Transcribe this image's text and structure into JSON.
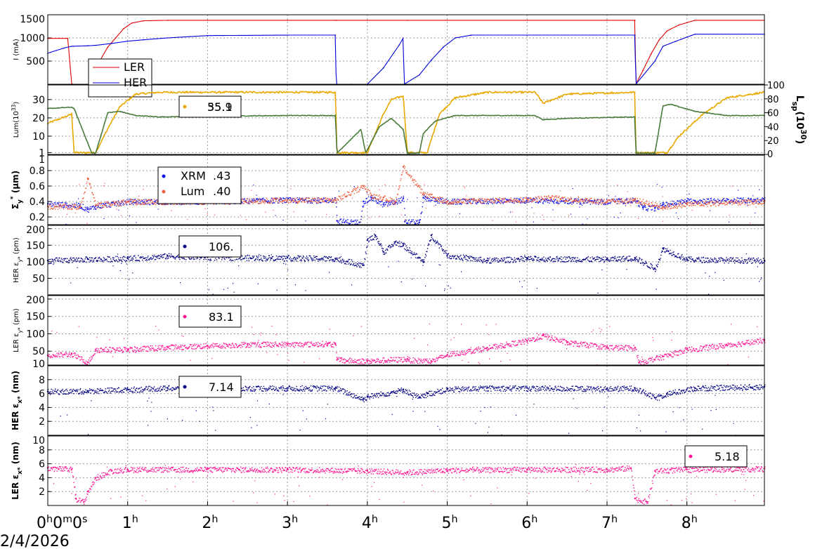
{
  "time_axis": {
    "ticks": [
      {
        "hours": 0,
        "label": "0",
        "sup": "h",
        "extra": "0",
        "extra_sup": "m",
        "extra2": "0",
        "extra2_sup": "s"
      },
      {
        "hours": 1,
        "label": "1",
        "sup": "h"
      },
      {
        "hours": 2,
        "label": "2",
        "sup": "h"
      },
      {
        "hours": 3,
        "label": "3",
        "sup": "h"
      },
      {
        "hours": 4,
        "label": "4",
        "sup": "h"
      },
      {
        "hours": 5,
        "label": "5",
        "sup": "h"
      },
      {
        "hours": 6,
        "label": "6",
        "sup": "h"
      },
      {
        "hours": 7,
        "label": "7",
        "sup": "h"
      },
      {
        "hours": 8,
        "label": "8",
        "sup": "h"
      }
    ],
    "date": "2/4/2026",
    "range_hours": [
      0,
      8.97
    ]
  },
  "chart_data": [
    {
      "type": "line",
      "ylabel": "I (mA)",
      "ylim": [
        0,
        1500
      ],
      "yticks": [
        500,
        1000,
        1500
      ],
      "grid": true,
      "legend_placement": "top-left",
      "series": [
        {
          "name": "LER",
          "color": "#e00000",
          "x": [
            0,
            0.25,
            0.3,
            0.5,
            0.55,
            0.6,
            0.65,
            0.75,
            0.85,
            0.95,
            1.05,
            1.2,
            1.5,
            2,
            3,
            3.6,
            3.62,
            4,
            4.5,
            5,
            6,
            7,
            7.35,
            7.36,
            7.45,
            7.55,
            7.65,
            7.75,
            7.9,
            8.1,
            8.97
          ],
          "y": [
            990,
            990,
            0,
            0,
            0,
            200,
            500,
            800,
            1000,
            1200,
            1320,
            1370,
            1380,
            1380,
            1380,
            1380,
            1380,
            1380,
            1380,
            1380,
            1380,
            1380,
            1380,
            0,
            300,
            650,
            950,
            1150,
            1280,
            1380,
            1380
          ]
        },
        {
          "name": "HER",
          "color": "#0000dd",
          "x": [
            0,
            0.2,
            0.3,
            0.32,
            0.5,
            0.6,
            0.8,
            1.0,
            1.2,
            1.5,
            2,
            3,
            3.6,
            3.61,
            3.8,
            4.0,
            4.2,
            4.4,
            4.45,
            4.46,
            4.65,
            4.8,
            4.95,
            5.1,
            5.3,
            6,
            7,
            7.35,
            7.36,
            7.6,
            7.7,
            7.85,
            8.1,
            8.97
          ],
          "y": [
            670,
            780,
            820,
            820,
            830,
            840,
            880,
            930,
            960,
            1000,
            1050,
            1060,
            1060,
            0,
            0,
            0,
            350,
            850,
            1000,
            0,
            200,
            520,
            800,
            1000,
            1060,
            1060,
            1060,
            1060,
            0,
            500,
            820,
            920,
            1080,
            1080
          ]
        }
      ]
    },
    {
      "type": "line",
      "ylabel": "Lum(10",
      "ylabel_sup": "33",
      "ylabel_tail": ")",
      "ylim": [
        0,
        38
      ],
      "yticks": [
        1,
        10,
        20,
        30
      ],
      "y2label": "L",
      "y2label_sub": "sp",
      "y2label_mid": "(10",
      "y2label_sup": "30",
      "y2label_tail": ")",
      "y2lim": [
        0,
        100
      ],
      "y2ticks": [
        0,
        20,
        40,
        60,
        80,
        100
      ],
      "grid": true,
      "legend_value": "55.1",
      "legend_value_2": "35.9",
      "series": [
        {
          "name": "",
          "axis": "left",
          "color": "#e8a800",
          "x": [
            0,
            0.3,
            0.33,
            0.55,
            0.6,
            0.75,
            0.9,
            1.1,
            1.4,
            2,
            3,
            3.6,
            3.62,
            3.95,
            4.0,
            4.2,
            4.3,
            4.45,
            4.5,
            4.72,
            4.75,
            4.9,
            5.1,
            5.5,
            6.1,
            6.2,
            6.5,
            7.35,
            7.36,
            7.75,
            7.9,
            8.2,
            8.5,
            8.97
          ],
          "y": [
            17,
            22,
            1,
            1,
            1,
            14,
            26,
            33,
            34,
            34,
            34,
            34,
            1,
            1,
            1,
            22,
            30,
            32,
            1,
            1,
            1,
            22,
            31,
            34,
            34,
            28,
            33,
            34,
            1,
            1,
            10,
            22,
            31,
            34
          ]
        },
        {
          "name": "",
          "axis": "right",
          "color": "#4b7a3a",
          "x": [
            0,
            0.3,
            0.33,
            0.55,
            0.6,
            0.75,
            0.9,
            1.1,
            1.4,
            2,
            3,
            3.6,
            3.62,
            3.92,
            3.98,
            4.15,
            4.3,
            4.45,
            4.5,
            4.65,
            4.7,
            4.85,
            5.1,
            5.5,
            6.1,
            6.2,
            6.5,
            7.35,
            7.36,
            7.6,
            7.7,
            7.8,
            8.1,
            8.5,
            8.97
          ],
          "y": [
            66,
            68,
            66,
            2,
            2,
            60,
            62,
            56,
            54,
            55,
            56,
            56,
            2,
            36,
            2,
            40,
            52,
            36,
            2,
            2,
            30,
            48,
            56,
            56,
            56,
            50,
            52,
            54,
            2,
            2,
            70,
            72,
            62,
            56,
            56
          ]
        }
      ]
    },
    {
      "type": "scatter",
      "ylabel": "Σ",
      "ylabel_sub": "y",
      "ylabel_sup": "*",
      "ylabel_tail": " (µm)",
      "ylim": [
        0.1,
        1.0
      ],
      "yticks": [
        0.2,
        0.4,
        0.6,
        0.8,
        1.0
      ],
      "grid": true,
      "series": [
        {
          "name": "XRM",
          "value": ".43",
          "color": "#1010ee",
          "x": [
            0,
            0.4,
            0.5,
            0.6,
            1,
            2,
            3,
            3.6,
            3.62,
            3.9,
            3.95,
            4.05,
            4.2,
            4.35,
            4.45,
            4.47,
            4.65,
            4.7,
            5,
            6,
            7,
            7.35,
            7.45,
            7.6,
            7.7,
            8,
            8.97
          ],
          "y": [
            0.37,
            0.35,
            0.3,
            0.34,
            0.4,
            0.4,
            0.42,
            0.42,
            0.15,
            0.13,
            0.4,
            0.45,
            0.36,
            0.4,
            0.44,
            0.14,
            0.13,
            0.45,
            0.4,
            0.42,
            0.4,
            0.42,
            0.32,
            0.32,
            0.36,
            0.41,
            0.42
          ]
        },
        {
          "name": "Lum",
          "value": ".40",
          "color": "#f06040",
          "x": [
            0,
            0.4,
            0.5,
            0.6,
            1,
            2,
            3,
            3.6,
            3.95,
            4.05,
            4.2,
            4.35,
            4.45,
            4.7,
            5,
            6,
            6.3,
            7,
            7.35,
            7.7,
            8,
            8.97
          ],
          "y": [
            0.34,
            0.33,
            0.7,
            0.35,
            0.4,
            0.4,
            0.42,
            0.42,
            0.6,
            0.48,
            0.45,
            0.4,
            0.85,
            0.5,
            0.4,
            0.43,
            0.45,
            0.4,
            0.42,
            0.33,
            0.37,
            0.4
          ]
        }
      ]
    },
    {
      "type": "scatter",
      "ylabel": "HER ε",
      "ylabel_sub": "y*",
      "ylabel_tail": " (pm)",
      "ylim": [
        0,
        210
      ],
      "yticks": [
        50,
        100,
        150,
        200
      ],
      "grid": true,
      "series": [
        {
          "name": "",
          "value": "106.",
          "color": "#000080",
          "x": [
            0,
            0.5,
            1,
            1.5,
            2,
            3,
            3.6,
            3.95,
            4.0,
            4.1,
            4.2,
            4.35,
            4.45,
            4.7,
            4.8,
            5,
            5.5,
            6,
            7,
            7.35,
            7.6,
            7.7,
            8,
            8.97
          ],
          "y": [
            104,
            108,
            110,
            118,
            114,
            112,
            110,
            90,
            165,
            180,
            130,
            160,
            150,
            100,
            180,
            120,
            104,
            110,
            108,
            112,
            80,
            140,
            108,
            104
          ]
        }
      ]
    },
    {
      "type": "scatter",
      "ylabel": "LER ε",
      "ylabel_sub": "y*",
      "ylabel_tail": " (pm)",
      "ylim": [
        10,
        210
      ],
      "yticks": [
        10,
        50,
        100,
        150,
        200
      ],
      "grid": true,
      "series": [
        {
          "name": "",
          "value": "83.1",
          "color": "#ff1493",
          "x": [
            0,
            0.3,
            0.5,
            0.6,
            1,
            1.5,
            2,
            2.5,
            3,
            3.5,
            3.6,
            3.62,
            4,
            4.5,
            4.52,
            4.8,
            5,
            5.5,
            6,
            6.2,
            6.5,
            7,
            7.35,
            7.4,
            7.7,
            8,
            8.5,
            8.97
          ],
          "y": [
            38,
            42,
            18,
            55,
            55,
            62,
            66,
            70,
            70,
            72,
            70,
            25,
            22,
            28,
            25,
            22,
            40,
            60,
            80,
            95,
            75,
            62,
            60,
            18,
            35,
            55,
            68,
            82
          ]
        }
      ]
    },
    {
      "type": "scatter",
      "ylabel": "HER ε",
      "ylabel_sub": "x*",
      "ylabel_tail": " (nm)",
      "ylim": [
        0,
        10
      ],
      "yticks": [
        2,
        4,
        6,
        8
      ],
      "grid": true,
      "legend_value": "7.14",
      "series": [
        {
          "name": "",
          "value": "7.14",
          "color": "#000080",
          "x": [
            0,
            0.5,
            1,
            1.5,
            2,
            3,
            3.6,
            3.95,
            4.0,
            4.3,
            4.45,
            4.65,
            4.75,
            5,
            5.5,
            6,
            7,
            7.35,
            7.6,
            7.75,
            8.1,
            8.97
          ],
          "y": [
            6.3,
            6.4,
            6.6,
            6.8,
            6.8,
            6.8,
            6.8,
            5.2,
            5.6,
            6.2,
            6.6,
            5.4,
            6.0,
            6.6,
            6.8,
            6.8,
            6.7,
            6.8,
            5.4,
            6.0,
            6.8,
            7.0
          ]
        }
      ]
    },
    {
      "type": "scatter",
      "ylabel": "LER ε",
      "ylabel_sub": "x*",
      "ylabel_tail": " (nm)",
      "ylim": [
        0,
        10
      ],
      "yticks": [
        2,
        4,
        6,
        8,
        10
      ],
      "grid": true,
      "series": [
        {
          "name": "",
          "value": "5.18",
          "color": "#ff1493",
          "x": [
            0,
            0.3,
            0.35,
            0.45,
            0.5,
            0.6,
            0.8,
            1,
            2,
            3,
            4,
            4.5,
            5,
            6,
            7,
            7.3,
            7.35,
            7.5,
            7.6,
            8,
            8.97
          ],
          "y": [
            5.4,
            5.2,
            1,
            0.5,
            2,
            4,
            5,
            5.2,
            5.2,
            5.2,
            5.0,
            4.8,
            5.1,
            5.2,
            5.2,
            5.4,
            1,
            0.5,
            5,
            5.2,
            5.3
          ]
        }
      ]
    }
  ]
}
